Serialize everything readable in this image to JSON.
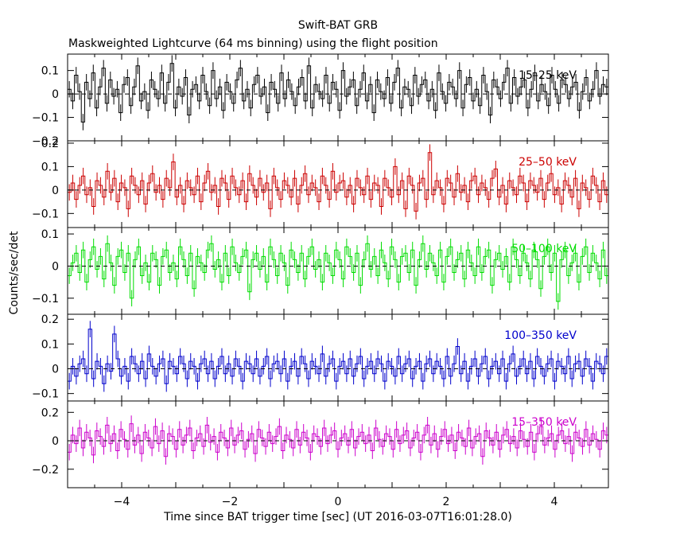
{
  "title": "Swift-BAT GRB",
  "subtitle": "Maskweighted Lightcurve (64 ms binning) using the flight position",
  "ylabel": "Counts/sec/det",
  "xlabel": "Time since BAT trigger time [sec] (UT 2016-03-07T16:01:28.0)",
  "chart_data": {
    "type": "line",
    "xlim": [
      -5.0,
      5.0
    ],
    "x_ticks": [
      -4,
      -2,
      0,
      2,
      4
    ],
    "x_tick_labels": [
      "−4",
      "−2",
      "0",
      "2",
      "4"
    ],
    "bin_width": 0.064,
    "grid": false,
    "legend": "none",
    "panels": [
      {
        "name": "15–25 keV",
        "color": "#000000",
        "ylim": [
          -0.2,
          0.17
        ],
        "yticks": [
          0.1,
          0,
          -0.1,
          -0.2
        ],
        "ytick_labels": [
          "0.1",
          "0",
          "−0.1",
          "−0.2"
        ],
        "values": [
          0.02,
          -0.03,
          0.08,
          0.01,
          -0.12,
          0.05,
          -0.02,
          0.09,
          -0.06,
          0.03,
          0.11,
          -0.04,
          0.06,
          -0.01,
          0.02,
          -0.08,
          0.04,
          0.07,
          -0.05,
          0.03,
          0.12,
          -0.03,
          0.01,
          -0.07,
          0.06,
          0.02,
          -0.02,
          0.09,
          -0.04,
          0.05,
          0.13,
          -0.06,
          0.03,
          -0.01,
          0.07,
          -0.09,
          0.02,
          0.04,
          -0.03,
          0.08,
          0.01,
          -0.05,
          0.1,
          -0.02,
          0.03,
          -0.07,
          0.05,
          0.01,
          -0.04,
          0.06,
          0.11,
          -0.03,
          0.02,
          -0.06,
          0.04,
          0.08,
          -0.01,
          0.03,
          -0.08,
          0.05,
          0.02,
          -0.04,
          0.09,
          -0.02,
          0.06,
          0.01,
          -0.05,
          0.03,
          0.07,
          -0.03,
          0.12,
          -0.06,
          0.04,
          0.01,
          -0.02,
          0.08,
          -0.04,
          0.05,
          0.02,
          -0.07,
          0.1,
          -0.01,
          0.03,
          0.06,
          -0.05,
          0.02,
          0.09,
          -0.03,
          0.04,
          -0.08,
          0.06,
          0.01,
          -0.02,
          0.07,
          -0.04,
          0.05,
          0.11,
          -0.06,
          0.03,
          0.02,
          -0.05,
          0.08,
          -0.01,
          0.04,
          0.06,
          -0.03,
          0.02,
          -0.07,
          0.09,
          0.01,
          -0.04,
          0.05,
          0.03,
          -0.02,
          0.1,
          -0.06,
          0.04,
          0.07,
          -0.03,
          0.02,
          -0.05,
          0.08,
          0.01,
          -0.09,
          0.06,
          0.03,
          -0.02,
          0.05,
          0.11,
          -0.04,
          0.07,
          -0.01,
          0.03,
          0.06,
          -0.06,
          0.02,
          0.09,
          -0.03,
          0.04,
          0.01,
          -0.05,
          0.08,
          0.02,
          -0.04,
          0.06,
          0.04,
          -0.02,
          0.03,
          0.05,
          -0.07,
          0.01,
          0.07,
          -0.03,
          0.02,
          0.1,
          -0.01,
          0.04,
          0.03
        ]
      },
      {
        "name": "25–50 keV",
        "color": "#cc0000",
        "ylim": [
          -0.16,
          0.21
        ],
        "yticks": [
          0.2,
          0.1,
          0,
          -0.1
        ],
        "ytick_labels": [
          "0.2",
          "0.1",
          "0",
          "−0.1"
        ],
        "values": [
          -0.01,
          0.03,
          -0.04,
          0.02,
          0.06,
          -0.02,
          0.01,
          -0.07,
          0.04,
          0.02,
          -0.03,
          0.08,
          -0.01,
          0.05,
          -0.05,
          0.03,
          0.01,
          -0.08,
          0.06,
          0.02,
          -0.02,
          0.04,
          -0.06,
          0.03,
          0.07,
          -0.01,
          0.02,
          -0.04,
          0.05,
          0.01,
          0.12,
          -0.03,
          0.02,
          -0.06,
          0.04,
          0.01,
          -0.02,
          0.06,
          -0.05,
          0.03,
          0.08,
          -0.01,
          0.02,
          -0.07,
          0.05,
          0.03,
          -0.04,
          0.06,
          0.01,
          -0.02,
          0.04,
          -0.05,
          0.07,
          0.02,
          -0.03,
          0.05,
          -0.01,
          0.03,
          -0.08,
          0.06,
          0.01,
          -0.04,
          0.04,
          0.02,
          -0.03,
          0.05,
          -0.06,
          0.02,
          0.07,
          -0.02,
          0.03,
          0.01,
          -0.05,
          0.06,
          0.02,
          -0.04,
          0.08,
          -0.01,
          0.03,
          0.04,
          -0.03,
          0.02,
          -0.06,
          0.05,
          0.01,
          -0.02,
          0.06,
          -0.04,
          0.03,
          0.02,
          -0.07,
          0.05,
          0.01,
          -0.03,
          0.1,
          -0.02,
          0.04,
          -0.08,
          0.06,
          0.02,
          -0.09,
          0.03,
          0.05,
          -0.04,
          0.16,
          -0.02,
          0.04,
          0.01,
          -0.06,
          0.05,
          0.03,
          -0.03,
          0.07,
          -0.01,
          0.02,
          -0.05,
          0.04,
          0.06,
          -0.02,
          0.03,
          0.01,
          -0.04,
          0.05,
          0.09,
          -0.03,
          0.02,
          -0.06,
          0.04,
          0.01,
          -0.02,
          0.06,
          0.03,
          -0.05,
          0.04,
          0.02,
          -0.01,
          0.05,
          -0.04,
          0.03,
          0.07,
          -0.02,
          0.01,
          -0.06,
          0.04,
          0.02,
          -0.03,
          0.05,
          -0.08,
          0.03,
          0.01,
          -0.04,
          0.06,
          0.02,
          -0.05,
          0.04,
          -0.02
        ]
      },
      {
        "name": "50–100 keV",
        "color": "#00dd00",
        "ylim": [
          -0.15,
          0.12
        ],
        "yticks": [
          0.1,
          0,
          -0.1
        ],
        "ytick_labels": [
          "0.1",
          "0",
          "−0.1"
        ],
        "values": [
          -0.03,
          0.01,
          0.04,
          -0.02,
          0.05,
          -0.05,
          0.02,
          0.06,
          -0.01,
          0.03,
          -0.04,
          0.07,
          0.01,
          -0.06,
          0.03,
          0.05,
          -0.02,
          0.04,
          -0.1,
          0.02,
          0.06,
          -0.03,
          0.01,
          -0.05,
          0.04,
          0.02,
          -0.06,
          0.03,
          0.05,
          -0.02,
          0.01,
          -0.04,
          0.06,
          0.02,
          -0.03,
          0.04,
          -0.07,
          0.03,
          0.01,
          -0.02,
          0.05,
          0.07,
          -0.01,
          0.02,
          -0.05,
          0.04,
          -0.03,
          0.06,
          0.01,
          -0.02,
          0.03,
          0.05,
          -0.08,
          0.02,
          0.04,
          -0.01,
          0.03,
          -0.05,
          0.06,
          0.02,
          -0.03,
          0.04,
          0.01,
          -0.06,
          0.05,
          0.02,
          -0.02,
          0.04,
          -0.04,
          0.03,
          0.06,
          -0.01,
          0.02,
          -0.05,
          0.04,
          0.01,
          -0.03,
          0.05,
          0.02,
          -0.04,
          0.06,
          0.03,
          -0.02,
          0.04,
          -0.06,
          0.02,
          0.07,
          -0.01,
          0.03,
          -0.03,
          0.05,
          0.01,
          -0.04,
          0.06,
          0.02,
          -0.05,
          0.03,
          0.04,
          -0.02,
          0.05,
          -0.06,
          0.02,
          0.07,
          -0.01,
          0.04,
          0.01,
          -0.03,
          0.05,
          -0.05,
          0.03,
          0.06,
          -0.02,
          0.02,
          0.04,
          -0.04,
          0.05,
          0.01,
          -0.03,
          0.06,
          -0.02,
          0.03,
          0.05,
          -0.06,
          0.02,
          0.04,
          -0.01,
          0.03,
          -0.05,
          0.06,
          0.02,
          -0.03,
          0.04,
          0.01,
          -0.04,
          0.05,
          0.02,
          -0.07,
          0.03,
          0.06,
          -0.02,
          0.04,
          -0.11,
          0.02,
          0.05,
          -0.03,
          0.01,
          0.04,
          -0.05,
          0.03,
          0.06,
          -0.02,
          0.04,
          0.01,
          -0.04,
          0.05,
          -0.03
        ]
      },
      {
        "name": "100–350 keV",
        "color": "#0000cc",
        "ylim": [
          -0.13,
          0.22
        ],
        "yticks": [
          0.2,
          0.1,
          0,
          -0.1
        ],
        "ytick_labels": [
          "0.2",
          "0.1",
          "0",
          "−0.1"
        ],
        "values": [
          -0.05,
          0.01,
          -0.03,
          0.02,
          0.04,
          -0.02,
          0.16,
          -0.04,
          0.03,
          0.01,
          -0.06,
          0.02,
          -0.01,
          0.14,
          0.04,
          -0.03,
          0.01,
          -0.05,
          0.05,
          0.02,
          -0.02,
          0.03,
          -0.04,
          0.06,
          0.01,
          -0.03,
          0.02,
          0.04,
          -0.06,
          0.03,
          0.01,
          -0.02,
          0.05,
          0.02,
          -0.04,
          0.03,
          0.01,
          -0.05,
          0.02,
          0.04,
          -0.02,
          0.03,
          -0.04,
          0.01,
          0.05,
          -0.02,
          0.02,
          -0.03,
          0.04,
          0.01,
          -0.05,
          0.03,
          0.02,
          -0.02,
          0.04,
          -0.03,
          0.01,
          0.05,
          -0.04,
          0.02,
          0.03,
          -0.02,
          0.04,
          -0.05,
          0.01,
          0.03,
          -0.03,
          0.05,
          0.02,
          -0.04,
          0.03,
          0.01,
          -0.02,
          0.06,
          -0.03,
          0.02,
          0.04,
          -0.05,
          0.01,
          0.03,
          -0.02,
          0.04,
          -0.03,
          0.02,
          0.05,
          -0.04,
          0.01,
          0.03,
          -0.02,
          0.04,
          0.02,
          -0.05,
          0.03,
          0.01,
          -0.03,
          0.05,
          -0.02,
          0.02,
          0.04,
          -0.04,
          0.01,
          0.03,
          -0.05,
          0.02,
          0.04,
          -0.02,
          0.03,
          0.01,
          -0.04,
          0.05,
          -0.03,
          0.02,
          0.09,
          -0.02,
          0.03,
          -0.05,
          0.01,
          0.04,
          -0.03,
          0.02,
          0.05,
          -0.04,
          0.01,
          0.03,
          -0.02,
          0.04,
          -0.05,
          0.02,
          0.06,
          -0.03,
          0.01,
          0.04,
          -0.02,
          0.03,
          -0.04,
          0.05,
          0.01,
          -0.03,
          0.02,
          0.04,
          -0.05,
          0.03,
          0.01,
          -0.02,
          0.05,
          -0.04,
          0.02,
          0.03,
          -0.03,
          0.04,
          0.01,
          -0.05,
          0.03,
          0.02,
          -0.02,
          0.05
        ]
      },
      {
        "name": "15–350 keV",
        "color": "#cc00cc",
        "ylim": [
          -0.33,
          0.28
        ],
        "yticks": [
          0.2,
          0,
          -0.2
        ],
        "ytick_labels": [
          "0.2",
          "0",
          "−0.2"
        ],
        "values": [
          -0.08,
          0.04,
          -0.02,
          0.09,
          -0.05,
          0.06,
          0.02,
          -0.1,
          0.07,
          0.03,
          -0.04,
          0.11,
          -0.02,
          0.05,
          -0.07,
          0.08,
          0.01,
          -0.06,
          0.12,
          -0.03,
          0.04,
          -0.09,
          0.06,
          0.02,
          -0.05,
          0.1,
          -0.02,
          0.07,
          -0.11,
          0.05,
          0.03,
          -0.06,
          0.08,
          -0.03,
          0.04,
          0.09,
          -0.07,
          0.02,
          0.05,
          -0.04,
          0.11,
          -0.01,
          0.03,
          -0.08,
          0.06,
          0.02,
          -0.05,
          0.09,
          -0.03,
          0.04,
          0.07,
          -0.06,
          0.01,
          0.05,
          -0.09,
          0.08,
          0.02,
          -0.04,
          0.06,
          -0.02,
          0.03,
          0.1,
          -0.07,
          0.04,
          0.01,
          -0.05,
          0.08,
          -0.03,
          0.06,
          0.02,
          -0.08,
          0.05,
          0.03,
          -0.04,
          0.09,
          -0.02,
          0.04,
          0.07,
          -0.06,
          0.02,
          0.05,
          -0.03,
          0.08,
          -0.05,
          0.03,
          0.06,
          -0.02,
          0.04,
          -0.07,
          0.09,
          0.01,
          -0.04,
          0.05,
          0.03,
          -0.06,
          0.08,
          -0.02,
          0.04,
          0.07,
          -0.05,
          0.02,
          0.06,
          -0.08,
          0.04,
          0.11,
          -0.03,
          0.05,
          -0.06,
          0.03,
          0.08,
          -0.02,
          0.04,
          -0.07,
          0.06,
          0.02,
          -0.04,
          0.09,
          -0.05,
          0.03,
          0.05,
          -0.11,
          0.07,
          0.02,
          -0.03,
          0.06,
          -0.06,
          0.04,
          0.08,
          -0.02,
          0.03,
          -0.05,
          0.07,
          0.01,
          -0.04,
          0.06,
          -0.08,
          0.05,
          0.1,
          -0.03,
          0.02,
          0.05,
          -0.06,
          0.04,
          0.07,
          -0.02,
          0.03,
          -0.09,
          0.06,
          0.02,
          -0.04,
          0.08,
          -0.03,
          0.05,
          0.01,
          -0.06,
          0.07,
          0.04
        ]
      }
    ]
  }
}
